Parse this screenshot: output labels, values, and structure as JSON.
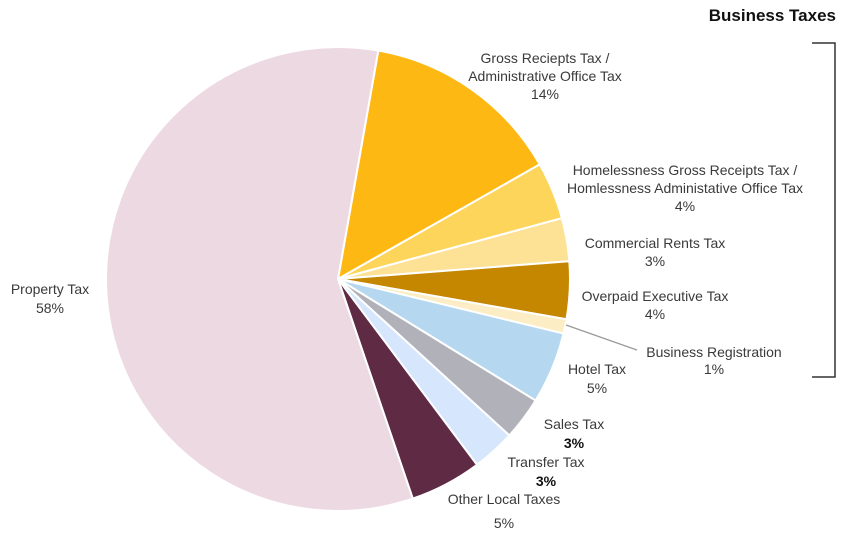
{
  "chart_data": {
    "type": "pie",
    "title": "Business Taxes",
    "unit": "%",
    "slices": [
      {
        "label": [
          "Gross Reciepts Tax /",
          "Administrative Office Tax"
        ],
        "value": 14,
        "value_label": "14%",
        "color": "#FDB813",
        "group": "Business Taxes"
      },
      {
        "label": [
          "Homelessness Gross Receipts Tax /",
          "Homlessness Administative Office Tax"
        ],
        "value": 4,
        "value_label": "4%",
        "color": "#FDD55B",
        "group": "Business Taxes"
      },
      {
        "label": [
          "Commercial Rents Tax"
        ],
        "value": 3,
        "value_label": "3%",
        "color": "#FDE194",
        "group": "Business Taxes"
      },
      {
        "label": [
          "Overpaid Executive Tax"
        ],
        "value": 4,
        "value_label": "4%",
        "color": "#C68700",
        "group": "Business Taxes"
      },
      {
        "label": [
          "Business Registration"
        ],
        "value": 1,
        "value_label": "1%",
        "color": "#FDEDC4",
        "group": "Business Taxes"
      },
      {
        "label": [
          "Hotel Tax"
        ],
        "value": 5,
        "value_label": "5%",
        "color": "#B5D8F0"
      },
      {
        "label": [
          "Sales Tax"
        ],
        "value": 3,
        "value_label": "3%",
        "color": "#B1B1BA"
      },
      {
        "label": [
          "Transfer Tax"
        ],
        "value": 3,
        "value_label": "3%",
        "color": "#D6E6FC"
      },
      {
        "label": [
          "Other Local Taxes"
        ],
        "value": 5,
        "value_label": "5%",
        "color": "#5E2A44"
      },
      {
        "label": [
          "Property Tax"
        ],
        "value": 58,
        "value_label": "58%",
        "color": "#EDD9E2"
      }
    ],
    "start_angle_deg": 10,
    "direction": "clockwise",
    "legend": "none"
  }
}
